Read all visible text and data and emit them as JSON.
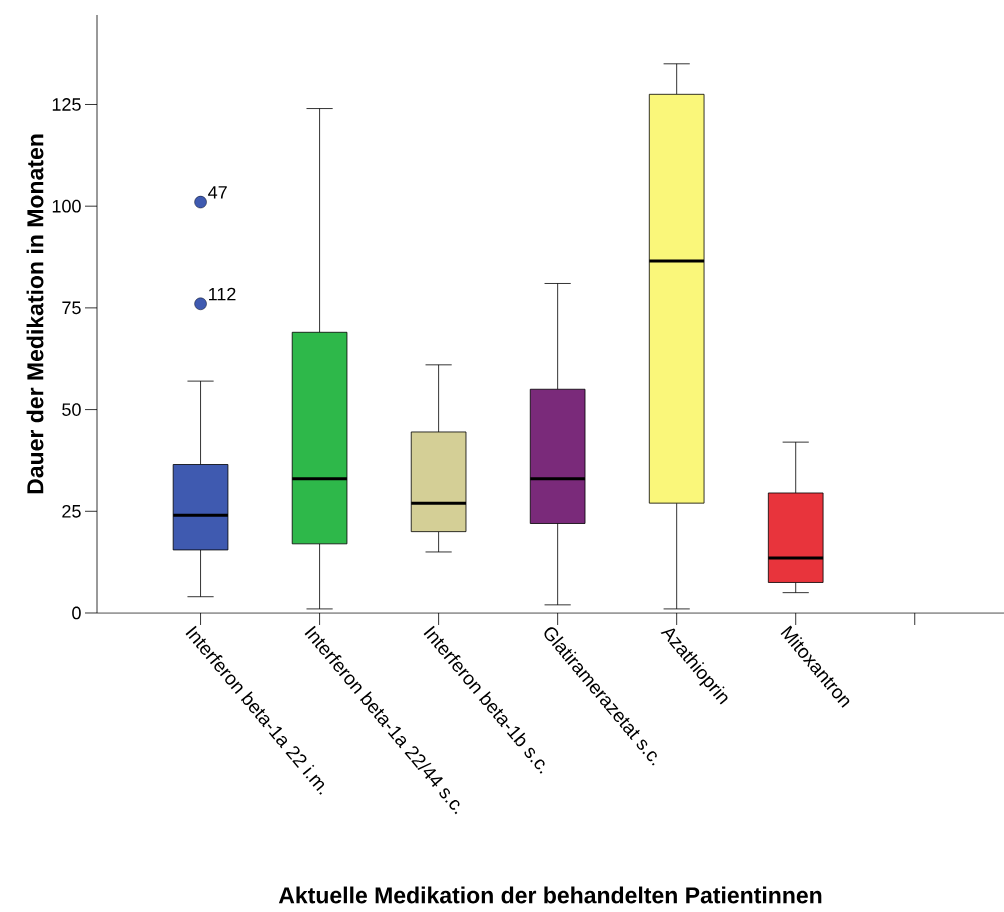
{
  "chart_data": {
    "type": "box",
    "xlabel": "Aktuelle Medikation der behandelten Patientinnen",
    "ylabel": "Dauer der Medikation in Monaten",
    "categories": [
      "Interferon beta-1a 22 i.m.",
      "Interferon beta-1a 22/44 s.c.",
      "Interferon beta-1b s.c.",
      "Glatiramerazetat s.c.",
      "Azathioprin",
      "Mitoxantron",
      null
    ],
    "colors": [
      "#3f5ab0",
      "#2eb84a",
      "#d4cf96",
      "#7a2a7a",
      "#faf77a",
      "#e8343c",
      null
    ],
    "boxes": [
      {
        "low": 4,
        "q1": 15.5,
        "median": 24,
        "q3": 36.5,
        "high": 57,
        "outliers": [
          101,
          76
        ]
      },
      {
        "low": 1,
        "q1": 17,
        "median": 33,
        "q3": 69,
        "high": 124
      },
      {
        "low": 15,
        "q1": 20,
        "median": 27,
        "q3": 44.5,
        "high": 61
      },
      {
        "low": 2,
        "q1": 22,
        "median": 33,
        "q3": 55,
        "high": 81
      },
      {
        "low": 1,
        "q1": 27,
        "median": 86.5,
        "q3": 127.5,
        "high": 135
      },
      {
        "low": 5,
        "q1": 7.5,
        "median": 13.5,
        "q3": 29.5,
        "high": 42
      },
      null
    ],
    "annotations": [
      "47",
      "112"
    ],
    "ylim": [
      0,
      147
    ],
    "yticks": [
      0,
      25,
      50,
      75,
      100,
      125
    ]
  }
}
